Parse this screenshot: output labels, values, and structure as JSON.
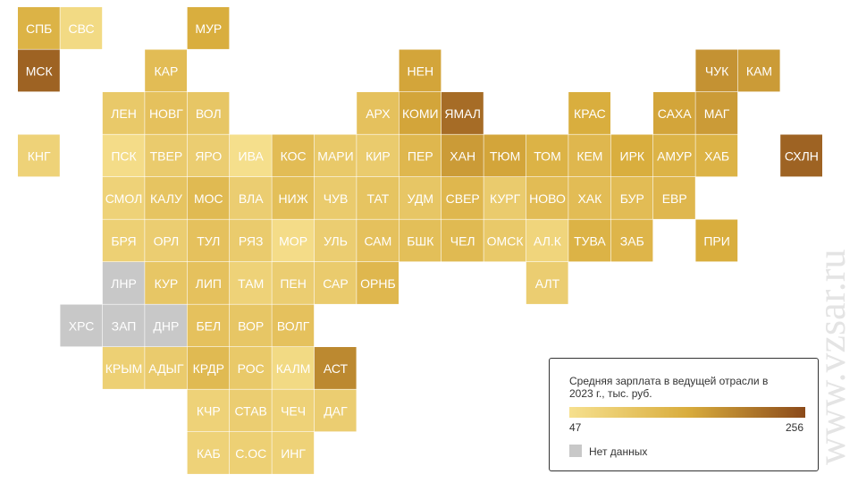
{
  "map": {
    "tiles": [
      {
        "label": "СПБ",
        "value": 140
      },
      {
        "label": "СВС",
        "value": 60
      },
      {
        "label": "МУР",
        "value": 150
      },
      {
        "label": "МСК",
        "value": 230
      },
      {
        "label": "КАР",
        "value": 120
      },
      {
        "label": "НЕН",
        "value": 160
      },
      {
        "label": "ЧУК",
        "value": 180
      },
      {
        "label": "КАМ",
        "value": 170
      },
      {
        "label": "ЛЕН",
        "value": 95
      },
      {
        "label": "НОВГ",
        "value": 110
      },
      {
        "label": "ВОЛ",
        "value": 100
      },
      {
        "label": "АРХ",
        "value": 110
      },
      {
        "label": "КОМИ",
        "value": 160
      },
      {
        "label": "ЯМАЛ",
        "value": 220
      },
      {
        "label": "КРАС",
        "value": 150
      },
      {
        "label": "САХА",
        "value": 160
      },
      {
        "label": "МАГ",
        "value": 170
      },
      {
        "label": "КНГ",
        "value": 75
      },
      {
        "label": "ПСК",
        "value": 55
      },
      {
        "label": "ТВЕР",
        "value": 90
      },
      {
        "label": "ЯРО",
        "value": 85
      },
      {
        "label": "ИВА",
        "value": 50
      },
      {
        "label": "КОС",
        "value": 120
      },
      {
        "label": "МАРИ",
        "value": 95
      },
      {
        "label": "КИР",
        "value": 90
      },
      {
        "label": "ПЕР",
        "value": 130
      },
      {
        "label": "ХАН",
        "value": 170
      },
      {
        "label": "ТЮМ",
        "value": 160
      },
      {
        "label": "ТОМ",
        "value": 140
      },
      {
        "label": "КЕМ",
        "value": 130
      },
      {
        "label": "ИРК",
        "value": 150
      },
      {
        "label": "АМУР",
        "value": 140
      },
      {
        "label": "ХАБ",
        "value": 140
      },
      {
        "label": "СХЛН",
        "value": 230
      },
      {
        "label": "СМОЛ",
        "value": 75
      },
      {
        "label": "КАЛУ",
        "value": 105
      },
      {
        "label": "МОС",
        "value": 125
      },
      {
        "label": "ВЛА",
        "value": 85
      },
      {
        "label": "НИЖ",
        "value": 115
      },
      {
        "label": "ЧУВ",
        "value": 90
      },
      {
        "label": "ТАТ",
        "value": 105
      },
      {
        "label": "УДМ",
        "value": 100
      },
      {
        "label": "СВЕР",
        "value": 130
      },
      {
        "label": "КУРГ",
        "value": 90
      },
      {
        "label": "НОВО",
        "value": 120
      },
      {
        "label": "ХАК",
        "value": 120
      },
      {
        "label": "БУР",
        "value": 120
      },
      {
        "label": "ЕВР",
        "value": 130
      },
      {
        "label": "БРЯ",
        "value": 80
      },
      {
        "label": "ОРЛ",
        "value": 85
      },
      {
        "label": "ТУЛ",
        "value": 110
      },
      {
        "label": "РЯЗ",
        "value": 90
      },
      {
        "label": "МОР",
        "value": 55
      },
      {
        "label": "УЛЬ",
        "value": 85
      },
      {
        "label": "САМ",
        "value": 110
      },
      {
        "label": "БШК",
        "value": 115
      },
      {
        "label": "ЧЕЛ",
        "value": 125
      },
      {
        "label": "ОМСК",
        "value": 95
      },
      {
        "label": "АЛ.К",
        "value": 70
      },
      {
        "label": "ТУВА",
        "value": 140
      },
      {
        "label": "ЗАБ",
        "value": 135
      },
      {
        "label": "ПРИ",
        "value": 150
      },
      {
        "label": "ЛНР",
        "value": null
      },
      {
        "label": "КУР",
        "value": 100
      },
      {
        "label": "ЛИП",
        "value": 110
      },
      {
        "label": "ТАМ",
        "value": 75
      },
      {
        "label": "ПЕН",
        "value": 85
      },
      {
        "label": "САР",
        "value": 90
      },
      {
        "label": "ОРНБ",
        "value": 130
      },
      {
        "label": "АЛТ",
        "value": 85
      },
      {
        "label": "ХРС",
        "value": null
      },
      {
        "label": "ЗАП",
        "value": null
      },
      {
        "label": "ДНР",
        "value": null
      },
      {
        "label": "БЕЛ",
        "value": 110
      },
      {
        "label": "ВОР",
        "value": 100
      },
      {
        "label": "ВОЛГ",
        "value": 110
      },
      {
        "label": "КРЫМ",
        "value": 80
      },
      {
        "label": "АДЫГ",
        "value": 90
      },
      {
        "label": "КРДР",
        "value": 125
      },
      {
        "label": "РОС",
        "value": 95
      },
      {
        "label": "КАЛМ",
        "value": 60
      },
      {
        "label": "АСТ",
        "value": 190
      },
      {
        "label": "КЧР",
        "value": 75
      },
      {
        "label": "СТАВ",
        "value": 85
      },
      {
        "label": "ЧЕЧ",
        "value": 75
      },
      {
        "label": "ДАГ",
        "value": 85
      },
      {
        "label": "КАБ",
        "value": 75
      },
      {
        "label": "С.ОС",
        "value": 80
      },
      {
        "label": "ИНГ",
        "value": 75
      }
    ],
    "legend": {
      "title": "Средняя зарплата в ведущей отрасли в 2023 г., тыс. руб.",
      "min": 47,
      "max": 256,
      "no_data": "Нет данных",
      "no_data_color": "#c8c8c8",
      "colors": [
        "#f6e08e",
        "#d9ad3d",
        "#8b4a1a"
      ]
    },
    "watermark": "www.vzsar.ru"
  }
}
